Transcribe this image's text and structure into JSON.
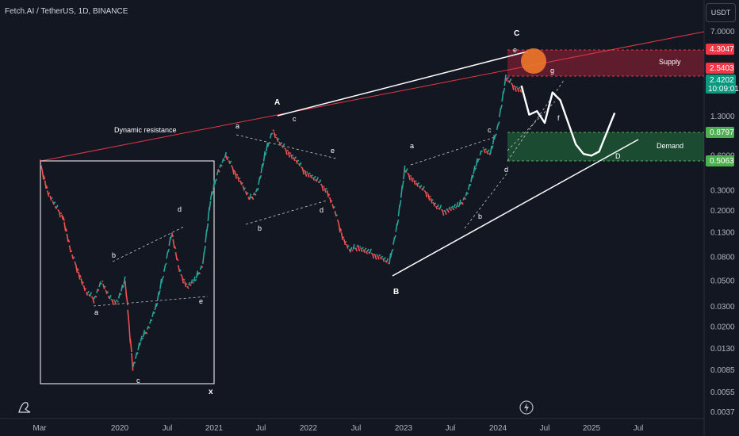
{
  "header": {
    "symbol_title": "Fetch.AI / TetherUS, 1D, BINANCE",
    "currency_button": "USDT"
  },
  "colors": {
    "background": "#131722",
    "supply_zone": "#7a1f32",
    "supply_line": "#f23645",
    "demand_zone": "#1e5a36",
    "demand_line": "#4caf50",
    "resistance_line": "#e53945",
    "trendline": "#ffffff",
    "highlight_circle": "#f57c2a"
  },
  "chart_data": {
    "type": "line",
    "scale": "log",
    "y_ticks": [
      "7.0000",
      "1.3000",
      "0.6000",
      "0.3000",
      "0.2000",
      "0.1300",
      "0.0800",
      "0.0500",
      "0.0300",
      "0.0200",
      "0.0130",
      "0.0085",
      "0.0055",
      "0.0037"
    ],
    "x_ticks": [
      "Mar",
      "2020",
      "Jul",
      "2021",
      "Jul",
      "2022",
      "Jul",
      "2023",
      "Jul",
      "2024",
      "Jul",
      "2025",
      "Jul"
    ],
    "price_tags": [
      {
        "label": "4.3047",
        "kind": "supply"
      },
      {
        "label": "2.5403",
        "kind": "supply"
      },
      {
        "label": "2.4202",
        "kind": "current"
      },
      {
        "label": "10:09:01",
        "kind": "timer"
      },
      {
        "label": "0.8797",
        "kind": "demand"
      },
      {
        "label": "0.5063",
        "kind": "demand"
      }
    ],
    "zones": [
      {
        "name": "Supply",
        "top": 4.3047,
        "bottom": 2.5403
      },
      {
        "name": "Demand",
        "top": 0.8797,
        "bottom": 0.5063
      }
    ],
    "annotations": {
      "dynamic_resistance": "Dynamic resistance",
      "wave_labels": {
        "A": "A",
        "B": "B",
        "C": "C",
        "D": "D",
        "x": "x",
        "a": "a",
        "b": "b",
        "c": "c",
        "d": "d",
        "e": "e",
        "f": "f",
        "g": "g"
      }
    },
    "price_path": [
      [
        "2019-03",
        0.55
      ],
      [
        "2019-04",
        0.3
      ],
      [
        "2019-05",
        0.22
      ],
      [
        "2019-06",
        0.18
      ],
      [
        "2019-07",
        0.09
      ],
      [
        "2019-08",
        0.06
      ],
      [
        "2019-09",
        0.04
      ],
      [
        "2019-10",
        0.035
      ],
      [
        "2019-11",
        0.05
      ],
      [
        "2019-12",
        0.035
      ],
      [
        "2020-01",
        0.033
      ],
      [
        "2020-02",
        0.05
      ],
      [
        "2020-03",
        0.009
      ],
      [
        "2020-04",
        0.015
      ],
      [
        "2020-05",
        0.02
      ],
      [
        "2020-06",
        0.03
      ],
      [
        "2020-07",
        0.06
      ],
      [
        "2020-08",
        0.13
      ],
      [
        "2020-09",
        0.06
      ],
      [
        "2020-10",
        0.045
      ],
      [
        "2020-11",
        0.05
      ],
      [
        "2020-12",
        0.07
      ],
      [
        "2021-01",
        0.25
      ],
      [
        "2021-02",
        0.45
      ],
      [
        "2021-03",
        0.6
      ],
      [
        "2021-04",
        0.45
      ],
      [
        "2021-05",
        0.35
      ],
      [
        "2021-06",
        0.25
      ],
      [
        "2021-07",
        0.3
      ],
      [
        "2021-08",
        0.6
      ],
      [
        "2021-09",
        1.0
      ],
      [
        "2021-10",
        0.75
      ],
      [
        "2021-11",
        0.65
      ],
      [
        "2021-12",
        0.55
      ],
      [
        "2022-01",
        0.45
      ],
      [
        "2022-02",
        0.4
      ],
      [
        "2022-03",
        0.35
      ],
      [
        "2022-04",
        0.3
      ],
      [
        "2022-05",
        0.2
      ],
      [
        "2022-06",
        0.12
      ],
      [
        "2022-07",
        0.09
      ],
      [
        "2022-08",
        0.1
      ],
      [
        "2022-09",
        0.09
      ],
      [
        "2022-10",
        0.085
      ],
      [
        "2022-11",
        0.08
      ],
      [
        "2022-12",
        0.07
      ],
      [
        "2023-01",
        0.15
      ],
      [
        "2023-02",
        0.45
      ],
      [
        "2023-03",
        0.38
      ],
      [
        "2023-04",
        0.32
      ],
      [
        "2023-05",
        0.28
      ],
      [
        "2023-06",
        0.22
      ],
      [
        "2023-07",
        0.2
      ],
      [
        "2023-08",
        0.21
      ],
      [
        "2023-09",
        0.22
      ],
      [
        "2023-10",
        0.28
      ],
      [
        "2023-11",
        0.45
      ],
      [
        "2023-12",
        0.7
      ],
      [
        "2024-01",
        0.62
      ],
      [
        "2024-02",
        1.1
      ],
      [
        "2024-03",
        2.8
      ],
      [
        "2024-04",
        2.4
      ],
      [
        "2024-05",
        2.2
      ]
    ],
    "projection_path": [
      [
        "2024-05",
        2.4
      ],
      [
        "2024-06",
        1.35
      ],
      [
        "2024-07",
        1.45
      ],
      [
        "2024-08",
        1.15
      ],
      [
        "2024-09",
        2.1
      ],
      [
        "2024-10",
        1.8
      ],
      [
        "2024-12",
        0.75
      ],
      [
        "2025-01",
        0.62
      ],
      [
        "2025-02",
        0.6
      ],
      [
        "2025-03",
        0.65
      ],
      [
        "2025-05",
        1.4
      ]
    ]
  }
}
